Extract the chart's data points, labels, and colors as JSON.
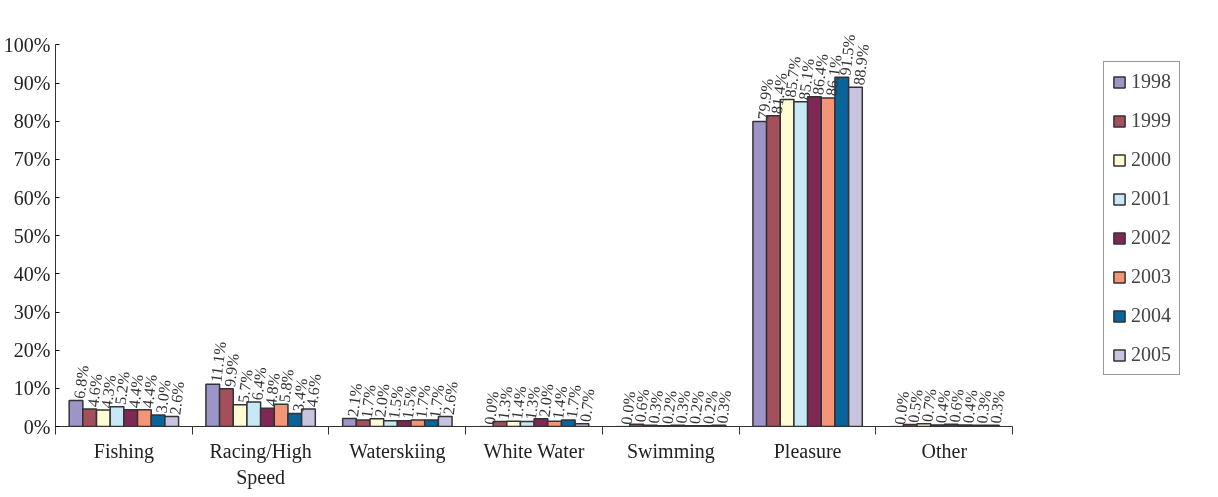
{
  "chart_data": {
    "type": "bar",
    "categories": [
      "Fishing",
      "Racing/High Speed",
      "Waterskiing",
      "White Water",
      "Swimming",
      "Pleasure",
      "Other"
    ],
    "ylim": [
      0,
      100
    ],
    "yticks": [
      {
        "value": 0,
        "label": "0%"
      },
      {
        "value": 10,
        "label": "10%"
      },
      {
        "value": 20,
        "label": "20%"
      },
      {
        "value": 30,
        "label": "30%"
      },
      {
        "value": 40,
        "label": "40%"
      },
      {
        "value": 50,
        "label": "50%"
      },
      {
        "value": 60,
        "label": "60%"
      },
      {
        "value": 70,
        "label": "70%"
      },
      {
        "value": 80,
        "label": "80%"
      },
      {
        "value": 90,
        "label": "90%"
      },
      {
        "value": 100,
        "label": "100%"
      }
    ],
    "grid": false,
    "legend": "right",
    "series": [
      {
        "name": "1998",
        "color": "#9d95c8",
        "values": [
          6.8,
          11.1,
          2.1,
          0.0,
          0.0,
          79.9,
          0.0
        ],
        "value_labels": [
          "6.8%",
          "11.1%",
          "2.1%",
          "0.0%",
          "0.0%",
          "79.9%",
          "0.0%"
        ]
      },
      {
        "name": "1999",
        "color": "#a44f5c",
        "values": [
          4.6,
          9.9,
          1.7,
          1.3,
          0.6,
          81.4,
          0.5
        ],
        "value_labels": [
          "4.6%",
          "9.9%",
          "1.7%",
          "1.3%",
          "0.6%",
          "81.4%",
          "0.5%"
        ]
      },
      {
        "name": "2000",
        "color": "#fffbd5",
        "values": [
          4.3,
          5.7,
          2.0,
          1.4,
          0.3,
          85.7,
          0.7
        ],
        "value_labels": [
          "4.3%",
          "5.7%",
          "2.0%",
          "1.4%",
          "0.3%",
          "85.7%",
          "0.7%"
        ]
      },
      {
        "name": "2001",
        "color": "#c8e8f8",
        "values": [
          5.2,
          6.4,
          1.5,
          1.3,
          0.2,
          85.1,
          0.4
        ],
        "value_labels": [
          "5.2%",
          "6.4%",
          "1.5%",
          "1.3%",
          "0.2%",
          "85.1%",
          "0.4%"
        ]
      },
      {
        "name": "2002",
        "color": "#7f2855",
        "values": [
          4.4,
          4.8,
          1.5,
          2.0,
          0.3,
          86.4,
          0.6
        ],
        "value_labels": [
          "4.4%",
          "4.8%",
          "1.5%",
          "2.0%",
          "0.3%",
          "86.4%",
          "0.6%"
        ]
      },
      {
        "name": "2003",
        "color": "#f59577",
        "values": [
          4.4,
          5.8,
          1.7,
          1.4,
          0.2,
          86.1,
          0.4
        ],
        "value_labels": [
          "4.4%",
          "5.8%",
          "1.7%",
          "1.4%",
          "0.2%",
          "86.1%",
          "0.4%"
        ]
      },
      {
        "name": "2004",
        "color": "#0a6399",
        "values": [
          3.0,
          3.4,
          1.7,
          1.7,
          0.2,
          91.5,
          0.3
        ],
        "value_labels": [
          "3.0%",
          "3.4%",
          "1.7%",
          "1.7%",
          "0.2%",
          "91.5%",
          "0.3%"
        ]
      },
      {
        "name": "2005",
        "color": "#c8c4e0",
        "values": [
          2.6,
          4.6,
          2.6,
          0.7,
          0.3,
          88.9,
          0.3
        ],
        "value_labels": [
          "2.6%",
          "4.6%",
          "2.6%",
          "0.7%",
          "0.3%",
          "88.9%",
          "0.3%"
        ]
      }
    ]
  }
}
